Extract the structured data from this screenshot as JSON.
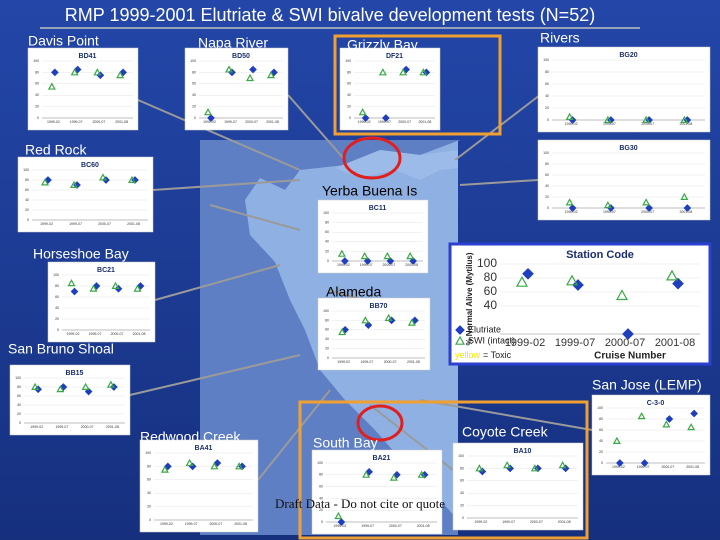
{
  "title": "RMP 1999-2001 Elutriate & SWI bivalve development tests (N=52)",
  "locations": [
    "Davis Point",
    "Napa River",
    "Grizzly Bay",
    "Rivers",
    "Red Rock",
    "Yerba Buena Is",
    "Horseshoe Bay",
    "Alameda",
    "San Bruno Shoal",
    "San Jose (LEMP)",
    "Redwood Creek",
    "South Bay",
    "Coyote Creek"
  ],
  "footnote": "Draft Data - Do not cite or quote",
  "chart_data": [
    {
      "type": "scatter",
      "title": "Station Code",
      "y_label": "% Normal Alive (Mytilus)",
      "x_label": "Cruise Number",
      "categories": [
        "1999-02",
        "1999-07",
        "2000-07",
        "2001-08"
      ],
      "ylim": [
        0,
        100
      ],
      "yticks": [
        40,
        60,
        80,
        100
      ],
      "series": [
        {
          "name": "Elutriate",
          "color": "#1f3fbf",
          "values": [
            86,
            70,
            0,
            72
          ]
        },
        {
          "name": "SWI (intact)",
          "color": "#3aa845",
          "values": [
            74,
            76,
            55,
            83
          ]
        }
      ],
      "legend_note": {
        "highlight": "yellow",
        "highlight_color": "#f2e600",
        "text": "= Toxic"
      }
    },
    {
      "type": "scatter",
      "title": "BD41",
      "categories": [
        "1999-02",
        "1999-07",
        "2000-07",
        "2001-08"
      ],
      "ylim": [
        0,
        100
      ],
      "yticks": [
        0,
        20,
        40,
        60,
        80,
        100
      ],
      "series": [
        {
          "color": "#1f3fbf",
          "values": [
            80,
            85,
            75,
            80
          ]
        },
        {
          "color": "#3aa845",
          "values": [
            55,
            80,
            80,
            75
          ]
        }
      ]
    },
    {
      "type": "scatter",
      "title": "BD50",
      "categories": [
        "1999-02",
        "1999-07",
        "2000-07",
        "2001-08"
      ],
      "ylim": [
        0,
        100
      ],
      "yticks": [
        0,
        20,
        40,
        60,
        80,
        100
      ],
      "series": [
        {
          "color": "#1f3fbf",
          "values": [
            0,
            80,
            85,
            80
          ]
        },
        {
          "color": "#3aa845",
          "values": [
            10,
            85,
            70,
            75
          ]
        }
      ]
    },
    {
      "type": "scatter",
      "title": "DF21",
      "categories": [
        "1999-02",
        "1999-07",
        "2000-07",
        "2001-08"
      ],
      "ylim": [
        0,
        100
      ],
      "yticks": [
        0,
        20,
        40,
        60,
        80,
        100
      ],
      "series": [
        {
          "color": "#1f3fbf",
          "values": [
            0,
            0,
            85,
            80
          ]
        },
        {
          "color": "#3aa845",
          "values": [
            10,
            80,
            80,
            80
          ]
        }
      ]
    },
    {
      "type": "scatter",
      "title": "BG20",
      "categories": [
        "1999-02",
        "1999-07",
        "2000-07",
        "2001-08"
      ],
      "ylim": [
        0,
        100
      ],
      "yticks": [
        0,
        20,
        40,
        60,
        80,
        100
      ],
      "series": [
        {
          "color": "#1f3fbf",
          "values": [
            0,
            0,
            0,
            0
          ]
        },
        {
          "color": "#3aa845",
          "values": [
            5,
            0,
            0,
            0
          ]
        }
      ]
    },
    {
      "type": "scatter",
      "title": "BG30",
      "categories": [
        "1999-02",
        "1999-07",
        "2000-07",
        "2001-08"
      ],
      "ylim": [
        0,
        100
      ],
      "yticks": [
        0,
        20,
        40,
        60,
        80,
        100
      ],
      "series": [
        {
          "color": "#1f3fbf",
          "values": [
            0,
            0,
            0,
            0
          ]
        },
        {
          "color": "#3aa845",
          "values": [
            10,
            5,
            10,
            20
          ]
        }
      ]
    },
    {
      "type": "scatter",
      "title": "BC60",
      "categories": [
        "1999-02",
        "1999-07",
        "2000-07",
        "2001-08"
      ],
      "ylim": [
        0,
        100
      ],
      "yticks": [
        0,
        20,
        40,
        60,
        80,
        100
      ],
      "series": [
        {
          "color": "#1f3fbf",
          "values": [
            80,
            70,
            80,
            80
          ]
        },
        {
          "color": "#3aa845",
          "values": [
            75,
            70,
            85,
            80
          ]
        }
      ]
    },
    {
      "type": "scatter",
      "title": "BC11",
      "categories": [
        "1999-02",
        "1999-07",
        "2000-07",
        "2001-08"
      ],
      "ylim": [
        0,
        100
      ],
      "yticks": [
        0,
        20,
        40,
        60,
        80,
        100
      ],
      "series": [
        {
          "color": "#1f3fbf",
          "values": [
            0,
            0,
            0,
            0
          ]
        },
        {
          "color": "#3aa845",
          "values": [
            15,
            10,
            10,
            10
          ]
        }
      ]
    },
    {
      "type": "scatter",
      "title": "BC21",
      "categories": [
        "1999-02",
        "1999-07",
        "2000-07",
        "2001-08"
      ],
      "ylim": [
        0,
        100
      ],
      "yticks": [
        0,
        20,
        40,
        60,
        80,
        100
      ],
      "series": [
        {
          "color": "#1f3fbf",
          "values": [
            70,
            80,
            75,
            80
          ]
        },
        {
          "color": "#3aa845",
          "values": [
            85,
            75,
            80,
            75
          ]
        }
      ]
    },
    {
      "type": "scatter",
      "title": "BB70",
      "categories": [
        "1999-02",
        "1999-07",
        "2000-07",
        "2001-08"
      ],
      "ylim": [
        0,
        100
      ],
      "yticks": [
        0,
        20,
        40,
        60,
        80,
        100
      ],
      "series": [
        {
          "color": "#1f3fbf",
          "values": [
            60,
            70,
            80,
            80
          ]
        },
        {
          "color": "#3aa845",
          "values": [
            55,
            80,
            85,
            75
          ]
        }
      ]
    },
    {
      "type": "scatter",
      "title": "BB15",
      "categories": [
        "1999-02",
        "1999-07",
        "2000-07",
        "2001-08"
      ],
      "ylim": [
        0,
        100
      ],
      "yticks": [
        0,
        20,
        40,
        60,
        80,
        100
      ],
      "series": [
        {
          "color": "#1f3fbf",
          "values": [
            75,
            80,
            70,
            80
          ]
        },
        {
          "color": "#3aa845",
          "values": [
            80,
            75,
            80,
            85
          ]
        }
      ]
    },
    {
      "type": "scatter",
      "title": "BA41",
      "categories": [
        "1999-02",
        "1999-07",
        "2000-07",
        "2001-08"
      ],
      "ylim": [
        0,
        100
      ],
      "yticks": [
        0,
        20,
        40,
        60,
        80,
        100
      ],
      "series": [
        {
          "color": "#1f3fbf",
          "values": [
            80,
            80,
            85,
            80
          ]
        },
        {
          "color": "#3aa845",
          "values": [
            75,
            85,
            80,
            80
          ]
        }
      ]
    },
    {
      "type": "scatter",
      "title": "BA21",
      "categories": [
        "1999-02",
        "1999-07",
        "2000-07",
        "2001-08"
      ],
      "ylim": [
        0,
        100
      ],
      "yticks": [
        0,
        20,
        40,
        60,
        80,
        100
      ],
      "series": [
        {
          "color": "#1f3fbf",
          "values": [
            0,
            85,
            80,
            80
          ]
        },
        {
          "color": "#3aa845",
          "values": [
            10,
            80,
            75,
            80
          ]
        }
      ]
    },
    {
      "type": "scatter",
      "title": "BA10",
      "categories": [
        "1999-02",
        "1999-07",
        "2000-07",
        "2001-08"
      ],
      "ylim": [
        0,
        100
      ],
      "yticks": [
        0,
        20,
        40,
        60,
        80,
        100
      ],
      "series": [
        {
          "color": "#1f3fbf",
          "values": [
            75,
            80,
            80,
            80
          ]
        },
        {
          "color": "#3aa845",
          "values": [
            80,
            85,
            80,
            85
          ]
        }
      ]
    },
    {
      "type": "scatter",
      "title": "C-3-0",
      "categories": [
        "1999-02",
        "1999-07",
        "2000-07",
        "2001-08"
      ],
      "ylim": [
        0,
        100
      ],
      "yticks": [
        0,
        20,
        40,
        60,
        80,
        100
      ],
      "series": [
        {
          "color": "#1f3fbf",
          "values": [
            0,
            0,
            80,
            90
          ]
        },
        {
          "color": "#3aa845",
          "values": [
            40,
            85,
            70,
            65
          ]
        }
      ]
    }
  ]
}
